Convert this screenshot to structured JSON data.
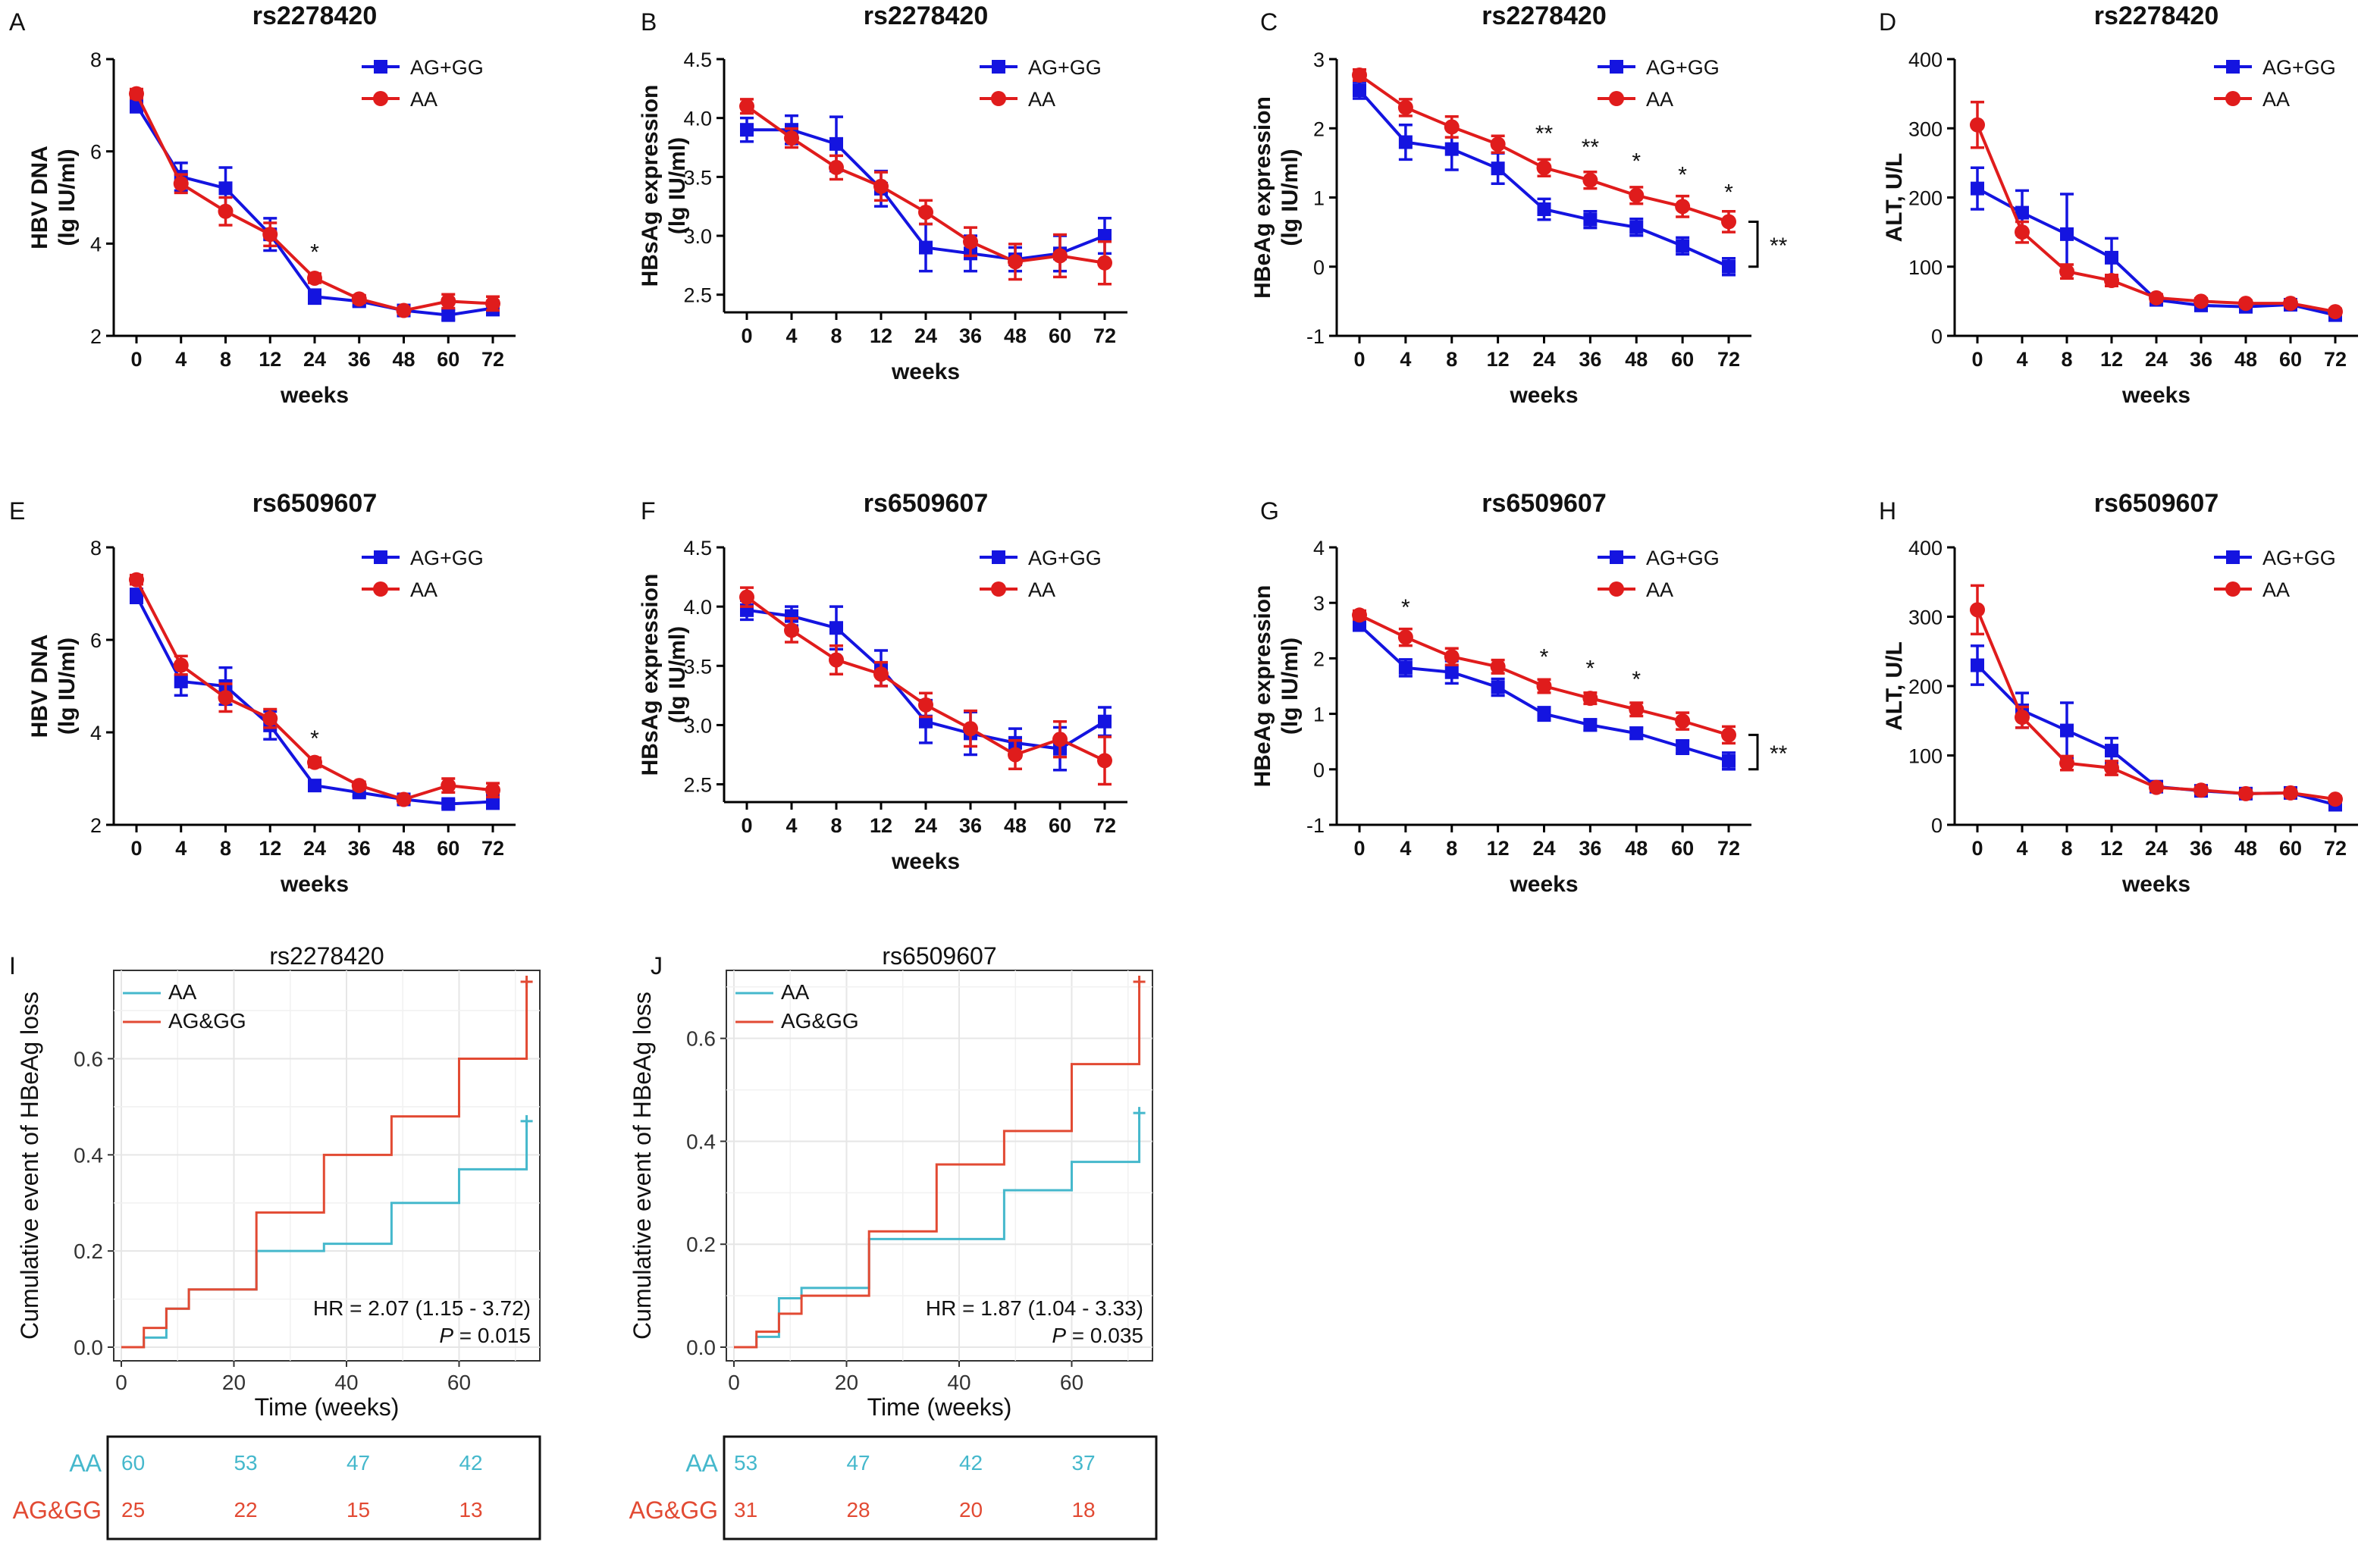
{
  "colors": {
    "blue": "#1414e0",
    "red": "#e01c1c",
    "km_cyan": "#45b8cc",
    "km_red": "#e24a33",
    "axis": "#000000"
  },
  "chart_data": [
    {
      "panel": "A",
      "type": "line",
      "title": "rs2278420",
      "xlabel": "weeks",
      "ylabel": [
        "HBV DNA",
        "(lg IU/ml)"
      ],
      "ylim": [
        2,
        8
      ],
      "yticks": [
        2,
        4,
        6,
        8
      ],
      "categories": [
        "0",
        "4",
        "8",
        "12",
        "24",
        "36",
        "48",
        "60",
        "72"
      ],
      "series": [
        {
          "name": "AG+GG",
          "color": "blue",
          "marker": "square",
          "values": [
            7.0,
            5.45,
            5.2,
            4.2,
            2.85,
            2.75,
            2.55,
            2.45,
            2.6
          ],
          "errors": [
            0.15,
            0.3,
            0.45,
            0.35,
            0.15,
            0.1,
            0.05,
            0.1,
            0.15
          ]
        },
        {
          "name": "AA",
          "color": "red",
          "marker": "circle",
          "values": [
            7.25,
            5.3,
            4.7,
            4.2,
            3.25,
            2.8,
            2.55,
            2.75,
            2.7
          ],
          "errors": [
            0.1,
            0.2,
            0.3,
            0.25,
            0.1,
            0.08,
            0.05,
            0.15,
            0.15
          ]
        }
      ],
      "annotations": [
        {
          "text": "*",
          "at": 4,
          "value": 3.85
        }
      ]
    },
    {
      "panel": "B",
      "type": "line",
      "title": "rs2278420",
      "xlabel": "weeks",
      "ylabel": [
        "HBsAg expression",
        "(lg IU/ml)"
      ],
      "ylim": [
        2.35,
        4.5
      ],
      "yticks": [
        2.5,
        3.0,
        3.5,
        4.0,
        4.5
      ],
      "yticklabels": [
        "2.5",
        "3.0",
        "3.5",
        "4.0",
        "4.5"
      ],
      "categories": [
        "0",
        "4",
        "8",
        "12",
        "24",
        "36",
        "48",
        "60",
        "72"
      ],
      "series": [
        {
          "name": "AG+GG",
          "color": "blue",
          "marker": "square",
          "values": [
            3.9,
            3.9,
            3.78,
            3.4,
            2.9,
            2.85,
            2.8,
            2.85,
            3.0
          ],
          "errors": [
            0.1,
            0.12,
            0.23,
            0.15,
            0.2,
            0.15,
            0.1,
            0.15,
            0.15
          ]
        },
        {
          "name": "AA",
          "color": "red",
          "marker": "circle",
          "values": [
            4.1,
            3.83,
            3.58,
            3.42,
            3.2,
            2.95,
            2.78,
            2.83,
            2.77
          ],
          "errors": [
            0.06,
            0.08,
            0.1,
            0.12,
            0.1,
            0.12,
            0.15,
            0.18,
            0.18
          ]
        }
      ],
      "annotations": []
    },
    {
      "panel": "C",
      "type": "line",
      "title": "rs2278420",
      "xlabel": "weeks",
      "ylabel": [
        "HBeAg expression",
        "(lg IU/ml)"
      ],
      "ylim": [
        -1,
        3
      ],
      "yticks": [
        -1,
        0,
        1,
        2,
        3
      ],
      "categories": [
        "0",
        "4",
        "8",
        "12",
        "24",
        "36",
        "48",
        "60",
        "72"
      ],
      "series": [
        {
          "name": "AG+GG",
          "color": "blue",
          "marker": "square",
          "values": [
            2.55,
            1.8,
            1.7,
            1.42,
            0.83,
            0.68,
            0.57,
            0.3,
            0.0
          ],
          "errors": [
            0.12,
            0.25,
            0.3,
            0.22,
            0.15,
            0.12,
            0.12,
            0.12,
            0.12
          ]
        },
        {
          "name": "AA",
          "color": "red",
          "marker": "circle",
          "values": [
            2.77,
            2.3,
            2.02,
            1.77,
            1.43,
            1.25,
            1.03,
            0.87,
            0.65
          ],
          "errors": [
            0.08,
            0.12,
            0.15,
            0.12,
            0.12,
            0.12,
            0.12,
            0.15,
            0.15
          ]
        }
      ],
      "annotations": [
        {
          "text": "**",
          "at": 4,
          "value": 1.95
        },
        {
          "text": "**",
          "at": 5,
          "value": 1.75
        },
        {
          "text": "*",
          "at": 6,
          "value": 1.55
        },
        {
          "text": "*",
          "at": 7,
          "value": 1.35
        },
        {
          "text": "*",
          "at": 8,
          "value": 1.1
        }
      ],
      "bracket": {
        "text": "**",
        "from": 0.0,
        "to": 0.65
      }
    },
    {
      "panel": "D",
      "type": "line",
      "title": "rs2278420",
      "xlabel": "weeks",
      "ylabel": [
        "ALT, U/L"
      ],
      "ylim": [
        0,
        400
      ],
      "yticks": [
        0,
        100,
        200,
        300,
        400
      ],
      "categories": [
        "0",
        "4",
        "8",
        "12",
        "24",
        "36",
        "48",
        "60",
        "72"
      ],
      "series": [
        {
          "name": "AG+GG",
          "color": "blue",
          "marker": "square",
          "values": [
            213,
            178,
            147,
            113,
            52,
            44,
            42,
            45,
            30
          ],
          "errors": [
            30,
            32,
            58,
            28,
            5,
            4,
            4,
            5,
            5
          ]
        },
        {
          "name": "AA",
          "color": "red",
          "marker": "circle",
          "values": [
            305,
            150,
            93,
            80,
            55,
            50,
            47,
            47,
            35
          ],
          "errors": [
            33,
            15,
            10,
            8,
            5,
            4,
            4,
            4,
            4
          ]
        }
      ],
      "annotations": []
    },
    {
      "panel": "E",
      "type": "line",
      "title": "rs6509607",
      "xlabel": "weeks",
      "ylabel": [
        "HBV DNA",
        "(lg IU/ml)"
      ],
      "ylim": [
        2,
        8
      ],
      "yticks": [
        2,
        4,
        6,
        8
      ],
      "categories": [
        "0",
        "4",
        "8",
        "12",
        "24",
        "36",
        "48",
        "60",
        "72"
      ],
      "series": [
        {
          "name": "AG+GG",
          "color": "blue",
          "marker": "square",
          "values": [
            6.95,
            5.1,
            5.0,
            4.15,
            2.85,
            2.7,
            2.55,
            2.45,
            2.5
          ],
          "errors": [
            0.15,
            0.3,
            0.4,
            0.3,
            0.1,
            0.08,
            0.05,
            0.08,
            0.15
          ]
        },
        {
          "name": "AA",
          "color": "red",
          "marker": "circle",
          "values": [
            7.3,
            5.45,
            4.75,
            4.3,
            3.35,
            2.85,
            2.55,
            2.85,
            2.75
          ],
          "errors": [
            0.1,
            0.2,
            0.3,
            0.2,
            0.1,
            0.08,
            0.05,
            0.15,
            0.15
          ]
        }
      ],
      "annotations": [
        {
          "text": "*",
          "at": 4,
          "value": 3.9
        }
      ]
    },
    {
      "panel": "F",
      "type": "line",
      "title": "rs6509607",
      "xlabel": "weeks",
      "ylabel": [
        "HBsAg expression",
        "(lg IU/ml)"
      ],
      "ylim": [
        2.35,
        4.5
      ],
      "yticks": [
        2.5,
        3.0,
        3.5,
        4.0,
        4.5
      ],
      "yticklabels": [
        "2.5",
        "3.0",
        "3.5",
        "4.0",
        "4.5"
      ],
      "categories": [
        "0",
        "4",
        "8",
        "12",
        "24",
        "36",
        "48",
        "60",
        "72"
      ],
      "series": [
        {
          "name": "AG+GG",
          "color": "blue",
          "marker": "square",
          "values": [
            3.97,
            3.92,
            3.82,
            3.48,
            3.03,
            2.93,
            2.85,
            2.8,
            3.03
          ],
          "errors": [
            0.08,
            0.08,
            0.18,
            0.15,
            0.18,
            0.18,
            0.12,
            0.18,
            0.12
          ]
        },
        {
          "name": "AA",
          "color": "red",
          "marker": "circle",
          "values": [
            4.08,
            3.8,
            3.55,
            3.43,
            3.17,
            2.97,
            2.75,
            2.88,
            2.7
          ],
          "errors": [
            0.08,
            0.1,
            0.12,
            0.1,
            0.1,
            0.15,
            0.12,
            0.15,
            0.2
          ]
        }
      ],
      "annotations": []
    },
    {
      "panel": "G",
      "type": "line",
      "title": "rs6509607",
      "xlabel": "weeks",
      "ylabel": [
        "HBeAg expression",
        "(lg IU/ml)"
      ],
      "ylim": [
        -1,
        4
      ],
      "yticks": [
        -1,
        0,
        1,
        2,
        3,
        4
      ],
      "categories": [
        "0",
        "4",
        "8",
        "12",
        "24",
        "36",
        "48",
        "60",
        "72"
      ],
      "series": [
        {
          "name": "AG+GG",
          "color": "blue",
          "marker": "square",
          "values": [
            2.6,
            1.83,
            1.75,
            1.48,
            1.0,
            0.8,
            0.65,
            0.4,
            0.15
          ],
          "errors": [
            0.1,
            0.15,
            0.2,
            0.15,
            0.12,
            0.1,
            0.1,
            0.12,
            0.15
          ]
        },
        {
          "name": "AA",
          "color": "red",
          "marker": "circle",
          "values": [
            2.78,
            2.38,
            2.03,
            1.85,
            1.5,
            1.28,
            1.08,
            0.87,
            0.62
          ],
          "errors": [
            0.08,
            0.15,
            0.15,
            0.12,
            0.12,
            0.1,
            0.12,
            0.15,
            0.15
          ]
        }
      ],
      "annotations": [
        {
          "text": "*",
          "at": 1,
          "value": 2.95
        },
        {
          "text": "*",
          "at": 4,
          "value": 2.05
        },
        {
          "text": "*",
          "at": 5,
          "value": 1.85
        },
        {
          "text": "*",
          "at": 6,
          "value": 1.65
        }
      ],
      "bracket": {
        "text": "**",
        "from": 0.0,
        "to": 0.62
      }
    },
    {
      "panel": "H",
      "type": "line",
      "title": "rs6509607",
      "xlabel": "weeks",
      "ylabel": [
        "ALT, U/L"
      ],
      "ylim": [
        0,
        400
      ],
      "yticks": [
        0,
        100,
        200,
        300,
        400
      ],
      "categories": [
        "0",
        "4",
        "8",
        "12",
        "24",
        "36",
        "48",
        "60",
        "72"
      ],
      "series": [
        {
          "name": "AG+GG",
          "color": "blue",
          "marker": "square",
          "values": [
            230,
            165,
            136,
            107,
            55,
            49,
            45,
            46,
            29
          ],
          "errors": [
            28,
            25,
            40,
            18,
            5,
            4,
            4,
            4,
            5
          ]
        },
        {
          "name": "AA",
          "color": "red",
          "marker": "circle",
          "values": [
            310,
            155,
            89,
            82,
            54,
            50,
            45,
            46,
            37
          ],
          "errors": [
            35,
            15,
            10,
            10,
            5,
            4,
            4,
            4,
            4
          ]
        }
      ],
      "annotations": []
    },
    {
      "panel": "I",
      "type": "step",
      "title": "rs2278420",
      "xlabel": "Time (weeks)",
      "ylabel": [
        "Cumulative event of HBeAg loss"
      ],
      "xlim": [
        0,
        73
      ],
      "xticks": [
        0,
        20,
        40,
        60
      ],
      "ylim": [
        0,
        0.76
      ],
      "yticks": [
        0.0,
        0.2,
        0.4,
        0.6
      ],
      "yticklabels": [
        "0.0",
        "0.2",
        "0.4",
        "0.6"
      ],
      "series": [
        {
          "name": "AA",
          "color": "km_cyan",
          "x": [
            0,
            4,
            8,
            12,
            24,
            36,
            48,
            60,
            72,
            72
          ],
          "y": [
            0,
            0.02,
            0.08,
            0.12,
            0.2,
            0.215,
            0.3,
            0.37,
            0.47,
            0.47
          ],
          "censor": [
            72,
            0.47
          ]
        },
        {
          "name": "AG&GG",
          "color": "km_red",
          "x": [
            0,
            4,
            8,
            12,
            24,
            36,
            48,
            60,
            72,
            72
          ],
          "y": [
            0,
            0.04,
            0.08,
            0.12,
            0.28,
            0.4,
            0.48,
            0.6,
            0.76,
            0.76
          ],
          "censor": [
            72,
            0.76
          ]
        }
      ],
      "hr_text": "HR = 2.07 (1.15 -  3.72)",
      "p_label": "P",
      "p_value": " = 0.015",
      "risk_table": {
        "rows": [
          {
            "label": "AA",
            "color": "km_cyan",
            "counts": [
              "60",
              "53",
              "47",
              "42"
            ]
          },
          {
            "label": "AG&GG",
            "color": "km_red",
            "counts": [
              "25",
              "22",
              "15",
              "13"
            ]
          }
        ]
      }
    },
    {
      "panel": "J",
      "type": "step",
      "title": "rs6509607",
      "xlabel": "Time (weeks)",
      "ylabel": [
        "Cumulative event of HBeAg loss"
      ],
      "xlim": [
        0,
        73
      ],
      "xticks": [
        0,
        20,
        40,
        60
      ],
      "ylim": [
        0,
        0.71
      ],
      "yticks": [
        0.0,
        0.2,
        0.4,
        0.6
      ],
      "yticklabels": [
        "0.0",
        "0.2",
        "0.4",
        "0.6"
      ],
      "series": [
        {
          "name": "AA",
          "color": "km_cyan",
          "x": [
            0,
            4,
            8,
            12,
            24,
            36,
            48,
            60,
            72,
            72
          ],
          "y": [
            0,
            0.02,
            0.095,
            0.115,
            0.21,
            0.21,
            0.305,
            0.36,
            0.455,
            0.455
          ],
          "censor": [
            72,
            0.455
          ]
        },
        {
          "name": "AG&GG",
          "color": "km_red",
          "x": [
            0,
            4,
            8,
            12,
            24,
            36,
            48,
            60,
            72,
            72
          ],
          "y": [
            0,
            0.03,
            0.065,
            0.1,
            0.225,
            0.355,
            0.42,
            0.55,
            0.71,
            0.71
          ],
          "censor": [
            72,
            0.71
          ]
        }
      ],
      "hr_text": "HR = 1.87 (1.04 -  3.33)",
      "p_label": "P",
      "p_value": " = 0.035",
      "risk_table": {
        "rows": [
          {
            "label": "AA",
            "color": "km_cyan",
            "counts": [
              "53",
              "47",
              "42",
              "37"
            ]
          },
          {
            "label": "AG&GG",
            "color": "km_red",
            "counts": [
              "31",
              "28",
              "20",
              "18"
            ]
          }
        ]
      }
    }
  ]
}
